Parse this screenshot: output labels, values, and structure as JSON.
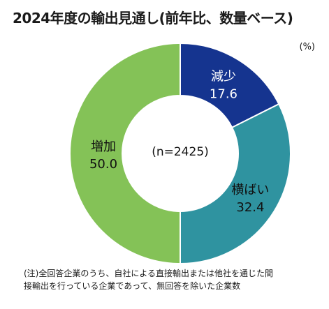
{
  "chart_data": {
    "type": "donut",
    "title": "2024年度の輸出見通し(前年比、数量ベース)",
    "unit": "(%)",
    "center_label": "(n=2425)",
    "slices": [
      {
        "label": "減少",
        "value": 17.6,
        "value_text": "17.6",
        "color": "#15348f",
        "text_color": "#ffffff"
      },
      {
        "label": "横ばい",
        "value": 32.4,
        "value_text": "32.4",
        "color": "#2f93a0",
        "text_color": "#111111"
      },
      {
        "label": "増加",
        "value": 50.0,
        "value_text": "50.0",
        "color": "#84c257",
        "text_color": "#111111"
      }
    ]
  },
  "footnote": {
    "line1": "(注)全回答企業のうち、自社による直接輸出または他社を通じた間",
    "line2": "接輸出を行っている企業であって、無回答を除いた企業数"
  }
}
